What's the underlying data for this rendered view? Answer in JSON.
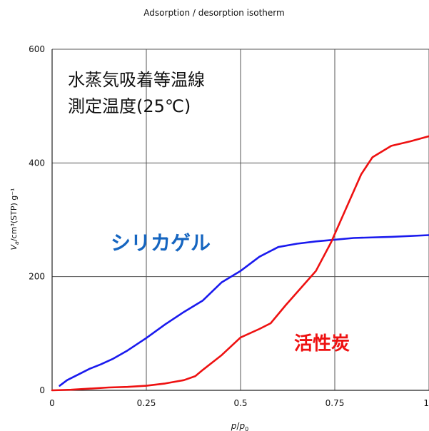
{
  "chart_data": {
    "type": "line",
    "title": "Adsorption / desorption isotherm",
    "xlabel": {
      "main": "p",
      "sep": "/",
      "sub_main": "p",
      "sub": "0"
    },
    "ylabel": {
      "v": "V",
      "v_sub": "a",
      "unit": "/cm³(STP) g⁻¹"
    },
    "xlim": [
      0,
      1
    ],
    "ylim": [
      0,
      600
    ],
    "x_ticks": [
      0,
      0.25,
      0.5,
      0.75,
      1
    ],
    "x_tick_labels": [
      "0",
      "0.25",
      "0.5",
      "0.75",
      "1"
    ],
    "y_ticks": [
      0,
      200,
      400,
      600
    ],
    "y_tick_labels": [
      "0",
      "200",
      "400",
      "600"
    ],
    "grid": true,
    "annotation_lines": [
      "水蒸気吸着等温線",
      "測定温度(25℃)"
    ],
    "series": [
      {
        "name": "シリカゲル",
        "color": "#1a1aee",
        "label_color": "#1565c0",
        "label_position": "middle-left",
        "x": [
          0.02,
          0.04,
          0.07,
          0.1,
          0.13,
          0.16,
          0.2,
          0.25,
          0.3,
          0.35,
          0.4,
          0.45,
          0.5,
          0.55,
          0.6,
          0.65,
          0.7,
          0.75,
          0.8,
          0.9,
          1.0
        ],
        "y": [
          8,
          18,
          28,
          38,
          46,
          55,
          70,
          92,
          116,
          138,
          158,
          190,
          210,
          235,
          252,
          258,
          262,
          265,
          268,
          270,
          273
        ]
      },
      {
        "name": "活性炭",
        "color": "#ee1111",
        "label_color": "#ee1111",
        "label_position": "lower-right",
        "x": [
          0.0,
          0.05,
          0.1,
          0.15,
          0.2,
          0.25,
          0.3,
          0.35,
          0.38,
          0.4,
          0.45,
          0.5,
          0.55,
          0.58,
          0.62,
          0.66,
          0.7,
          0.74,
          0.78,
          0.82,
          0.85,
          0.9,
          0.95,
          1.0
        ],
        "y": [
          0,
          1,
          3,
          5,
          6,
          8,
          12,
          18,
          25,
          36,
          62,
          93,
          108,
          118,
          150,
          180,
          210,
          260,
          320,
          380,
          410,
          430,
          438,
          447
        ]
      }
    ]
  }
}
